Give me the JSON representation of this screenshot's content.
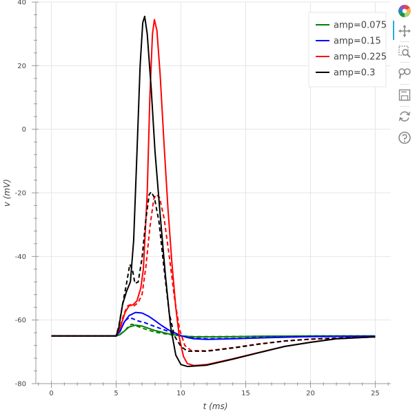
{
  "chart_data": {
    "type": "line",
    "xlabel": "t (ms)",
    "ylabel": "v (mV)",
    "xlim": [
      -1.2,
      26.2
    ],
    "ylim": [
      -80,
      40
    ],
    "x_ticks": [
      0,
      5,
      10,
      15,
      20,
      25
    ],
    "y_ticks": [
      -80,
      -60,
      -40,
      -20,
      0,
      20,
      40
    ],
    "grid": true,
    "legend_position": "top-right",
    "legend": [
      "amp=0.075",
      "amp=0.15",
      "amp=0.225",
      "amp=0.3"
    ],
    "series": [
      {
        "name": "amp=0.075",
        "color": "#008000",
        "dash": "solid",
        "points": [
          [
            0,
            -65
          ],
          [
            5,
            -65
          ],
          [
            5.3,
            -64.6
          ],
          [
            5.6,
            -63.6
          ],
          [
            6,
            -62.2
          ],
          [
            6.5,
            -61.6
          ],
          [
            7,
            -61.9
          ],
          [
            7.5,
            -62.6
          ],
          [
            8,
            -63.3
          ],
          [
            9,
            -64.3
          ],
          [
            10,
            -65
          ],
          [
            11,
            -65.3
          ],
          [
            13,
            -65.3
          ],
          [
            16,
            -65.1
          ],
          [
            20,
            -65
          ],
          [
            25,
            -65
          ]
        ]
      },
      {
        "name": "amp=0.075",
        "color": "#008000",
        "dash": "dashed",
        "points": [
          [
            0,
            -65
          ],
          [
            5,
            -65
          ],
          [
            5.3,
            -64.5
          ],
          [
            5.7,
            -63.2
          ],
          [
            6,
            -61.8
          ],
          [
            6.2,
            -61.3
          ],
          [
            6.6,
            -61.9
          ],
          [
            7,
            -62.5
          ],
          [
            7.5,
            -63.2
          ],
          [
            8,
            -63.8
          ],
          [
            9,
            -64.5
          ],
          [
            10,
            -65
          ],
          [
            11,
            -65.2
          ],
          [
            13,
            -65.2
          ],
          [
            16,
            -65.1
          ],
          [
            20,
            -65
          ],
          [
            25,
            -65
          ]
        ]
      },
      {
        "name": "amp=0.15",
        "color": "#0000ff",
        "dash": "solid",
        "points": [
          [
            0,
            -65
          ],
          [
            5,
            -65
          ],
          [
            5.3,
            -63.6
          ],
          [
            5.6,
            -60.8
          ],
          [
            6,
            -58.6
          ],
          [
            6.5,
            -57.6
          ],
          [
            7,
            -57.8
          ],
          [
            7.5,
            -58.8
          ],
          [
            8,
            -60.2
          ],
          [
            8.5,
            -61.7
          ],
          [
            9,
            -63
          ],
          [
            9.5,
            -64
          ],
          [
            10,
            -64.9
          ],
          [
            10.5,
            -65.5
          ],
          [
            11,
            -65.9
          ],
          [
            12,
            -66.1
          ],
          [
            14,
            -65.9
          ],
          [
            17,
            -65.5
          ],
          [
            20,
            -65.2
          ],
          [
            25,
            -65.1
          ]
        ]
      },
      {
        "name": "amp=0.15",
        "color": "#0000ff",
        "dash": "dashed",
        "points": [
          [
            0,
            -65
          ],
          [
            5,
            -65
          ],
          [
            5.3,
            -63.2
          ],
          [
            5.7,
            -60.2
          ],
          [
            6,
            -59.2
          ],
          [
            6.3,
            -59.6
          ],
          [
            6.7,
            -60.3
          ],
          [
            7.2,
            -60.8
          ],
          [
            7.7,
            -61.6
          ],
          [
            8.3,
            -62.5
          ],
          [
            9,
            -63.5
          ],
          [
            9.5,
            -64.3
          ],
          [
            10,
            -64.9
          ],
          [
            10.5,
            -65.4
          ],
          [
            11,
            -65.7
          ],
          [
            12,
            -65.9
          ],
          [
            14,
            -65.8
          ],
          [
            17,
            -65.4
          ],
          [
            20,
            -65.2
          ],
          [
            25,
            -65.1
          ]
        ]
      },
      {
        "name": "amp=0.225",
        "color": "#ff0000",
        "dash": "solid",
        "points": [
          [
            0,
            -65
          ],
          [
            5,
            -65
          ],
          [
            5.3,
            -62.5
          ],
          [
            5.7,
            -57.5
          ],
          [
            6,
            -55.5
          ],
          [
            6.3,
            -55.2
          ],
          [
            6.6,
            -54
          ],
          [
            6.9,
            -50
          ],
          [
            7.1,
            -44
          ],
          [
            7.4,
            -20
          ],
          [
            7.6,
            10
          ],
          [
            7.8,
            30
          ],
          [
            7.95,
            34.5
          ],
          [
            8.15,
            31
          ],
          [
            8.4,
            17
          ],
          [
            8.7,
            -5
          ],
          [
            9,
            -25
          ],
          [
            9.3,
            -42
          ],
          [
            9.6,
            -56
          ],
          [
            9.9,
            -66
          ],
          [
            10.2,
            -71.5
          ],
          [
            10.5,
            -73.7
          ],
          [
            11,
            -74.3
          ],
          [
            12,
            -74
          ],
          [
            14,
            -72.2
          ],
          [
            16,
            -70.2
          ],
          [
            18,
            -68.3
          ],
          [
            20,
            -67
          ],
          [
            22,
            -65.9
          ],
          [
            25,
            -65.3
          ]
        ]
      },
      {
        "name": "amp=0.225",
        "color": "#ff0000",
        "dash": "dashed",
        "points": [
          [
            0,
            -65
          ],
          [
            5,
            -65
          ],
          [
            5.3,
            -62.4
          ],
          [
            5.6,
            -58
          ],
          [
            5.9,
            -55.5
          ],
          [
            6.1,
            -55.2
          ],
          [
            6.4,
            -55.5
          ],
          [
            6.7,
            -54.5
          ],
          [
            7,
            -52
          ],
          [
            7.3,
            -43
          ],
          [
            7.6,
            -31
          ],
          [
            7.9,
            -22
          ],
          [
            8.1,
            -20.5
          ],
          [
            8.35,
            -21.5
          ],
          [
            8.7,
            -28
          ],
          [
            9.1,
            -40
          ],
          [
            9.5,
            -53
          ],
          [
            9.9,
            -63
          ],
          [
            10.3,
            -68
          ],
          [
            10.8,
            -69.6
          ],
          [
            12,
            -69.7
          ],
          [
            14,
            -68.7
          ],
          [
            16,
            -67.5
          ],
          [
            18,
            -66.6
          ],
          [
            20,
            -66
          ],
          [
            25,
            -65.3
          ]
        ]
      },
      {
        "name": "amp=0.3",
        "color": "#000000",
        "dash": "solid",
        "points": [
          [
            0,
            -65
          ],
          [
            5,
            -65
          ],
          [
            5.2,
            -62.5
          ],
          [
            5.5,
            -55
          ],
          [
            5.8,
            -51
          ],
          [
            6.1,
            -48
          ],
          [
            6.35,
            -35
          ],
          [
            6.6,
            -8
          ],
          [
            6.85,
            20
          ],
          [
            7.05,
            33.5
          ],
          [
            7.2,
            35.5
          ],
          [
            7.4,
            30
          ],
          [
            7.7,
            13
          ],
          [
            8,
            -7
          ],
          [
            8.4,
            -27
          ],
          [
            8.8,
            -46
          ],
          [
            9.2,
            -62
          ],
          [
            9.6,
            -71
          ],
          [
            10,
            -74
          ],
          [
            10.5,
            -74.6
          ],
          [
            12,
            -74.2
          ],
          [
            14,
            -72.3
          ],
          [
            16,
            -70.3
          ],
          [
            18,
            -68.3
          ],
          [
            20,
            -67
          ],
          [
            22,
            -65.9
          ],
          [
            25,
            -65.3
          ]
        ]
      },
      {
        "name": "amp=0.3",
        "color": "#000000",
        "dash": "dashed",
        "points": [
          [
            0,
            -65
          ],
          [
            5,
            -65
          ],
          [
            5.2,
            -62
          ],
          [
            5.5,
            -55
          ],
          [
            5.8,
            -48.5
          ],
          [
            6.05,
            -42.5
          ],
          [
            6.25,
            -44
          ],
          [
            6.45,
            -48.5
          ],
          [
            6.7,
            -48
          ],
          [
            7,
            -40.5
          ],
          [
            7.3,
            -28
          ],
          [
            7.55,
            -20.5
          ],
          [
            7.7,
            -19.7
          ],
          [
            7.95,
            -21.5
          ],
          [
            8.3,
            -29
          ],
          [
            8.7,
            -44
          ],
          [
            9.1,
            -58
          ],
          [
            9.5,
            -65
          ],
          [
            10,
            -68.3
          ],
          [
            10.5,
            -69.8
          ],
          [
            12,
            -69.8
          ],
          [
            14,
            -68.8
          ],
          [
            16,
            -67.6
          ],
          [
            18,
            -66.6
          ],
          [
            20,
            -66
          ],
          [
            25,
            -65.3
          ]
        ]
      }
    ]
  },
  "toolbar": {
    "logo_icon": "bokeh-logo-icon",
    "tools": [
      "pan-icon",
      "box-zoom-icon",
      "wheel-zoom-icon",
      "save-icon",
      "reset-icon",
      "help-icon"
    ]
  }
}
